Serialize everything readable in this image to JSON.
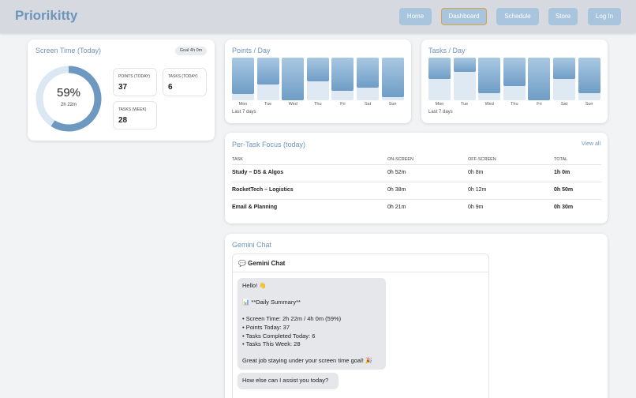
{
  "header": {
    "title": "Priorikitty",
    "nav": [
      "Home",
      "Dashboard",
      "Schedule",
      "Store",
      "Log In"
    ],
    "active": "Dashboard"
  },
  "screen_time": {
    "title": "Screen Time (Today)",
    "goal": "Goal 4h 0m",
    "percent": 59,
    "percent_label": "59%",
    "time": "2h 22m",
    "stats": [
      {
        "label": "POINTS (TODAY)",
        "value": 37
      },
      {
        "label": "TASKS (TODAY)",
        "value": 6
      },
      {
        "label": "TASKS (WEEK)",
        "value": 28
      }
    ]
  },
  "points_chart": {
    "title": "Points / Day",
    "categories": [
      "Mon",
      "Tue",
      "Wed",
      "Thu",
      "Fri",
      "Sat",
      "Sun"
    ],
    "values": [
      44,
      33,
      52,
      29,
      40,
      37,
      48
    ],
    "footnote": "Last 7 days"
  },
  "tasks_chart": {
    "title": "Tasks / Day",
    "categories": [
      "Mon",
      "Tue",
      "Wed",
      "Thu",
      "Fri",
      "Sat",
      "Sun"
    ],
    "values": [
      3,
      2,
      5,
      4,
      6,
      3,
      5
    ],
    "footnote": "Last 7 days"
  },
  "focus": {
    "title": "Per-Task Focus (today)",
    "link": "View all",
    "columns": [
      "TASK",
      "ON-SCREEN",
      "OFF-SCREEN",
      "TOTAL"
    ],
    "rows": [
      [
        "Study – DS & Algos",
        "0h 52m",
        "0h 8m",
        "1h 0m"
      ],
      [
        "RocketTech – Logistics",
        "0h 38m",
        "0h 12m",
        "0h 50m"
      ],
      [
        "Email & Planning",
        "0h 21m",
        "0h 9m",
        "0h 30m"
      ]
    ]
  },
  "chat": {
    "title": "Gemini Chat",
    "window_title": "💬 Gemini Chat",
    "messages": [
      {
        "paragraphs": [
          [
            "Hello! 👋"
          ],
          [
            "📊 **Daily Summary**"
          ],
          [
            "• Screen Time: 2h 22m / 4h 0m (59%)",
            "• Points Today: 37",
            "• Tasks Completed Today: 6",
            "• Tasks This Week: 28"
          ],
          [
            "Great job staying under your screen time goal! 🎉"
          ]
        ]
      },
      {
        "paragraphs": [
          [
            "How else can I assist you today?"
          ]
        ]
      }
    ]
  }
}
